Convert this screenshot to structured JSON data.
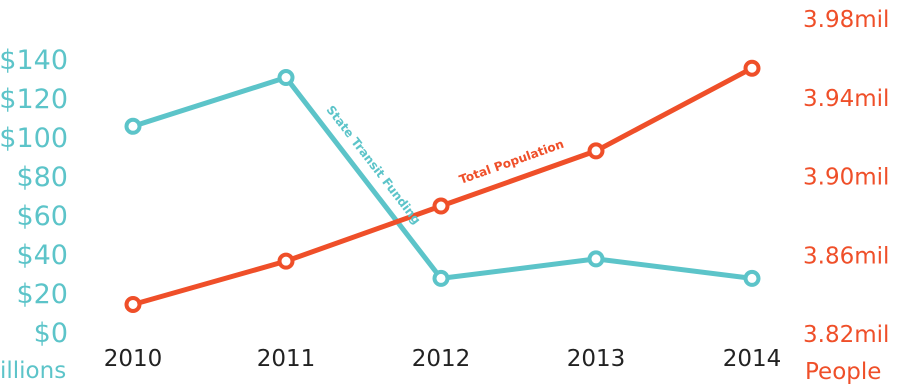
{
  "chart_data": {
    "type": "line",
    "categories": [
      "2010",
      "2011",
      "2012",
      "2013",
      "2014"
    ],
    "y_left": {
      "ticks": [
        "$0",
        "$20",
        "$40",
        "$60",
        "$80",
        "$100",
        "$120",
        "$140"
      ],
      "tick_values": [
        0,
        20,
        40,
        60,
        80,
        100,
        120,
        140
      ],
      "unit_label": "illions",
      "ylim": [
        0,
        140
      ],
      "color": "#5cc4c9"
    },
    "y_right": {
      "ticks": [
        "3.82mil",
        "3.86mil",
        "3.90mil",
        "3.94mil",
        "3.98mil"
      ],
      "tick_values": [
        3.82,
        3.86,
        3.9,
        3.94,
        3.98
      ],
      "unit_label": "People",
      "ylim": [
        3.82,
        3.98
      ],
      "color": "#ef4f29"
    },
    "series": [
      {
        "name": "State Transit Funding",
        "axis": "left",
        "color": "#5cc4c9",
        "values": [
          106,
          131,
          28,
          38,
          28
        ]
      },
      {
        "name": "Total Population",
        "axis": "right",
        "color": "#ef4f29",
        "values": [
          3.835,
          3.857,
          3.885,
          3.913,
          3.955
        ]
      }
    ],
    "grid": false,
    "legend": "none"
  }
}
